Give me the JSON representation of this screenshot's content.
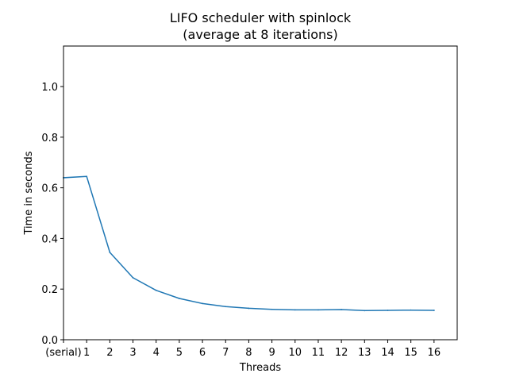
{
  "chart_data": {
    "type": "line",
    "title": "LIFO scheduler with spinlock",
    "subtitle": "(average at 8 iterations)",
    "xlabel": "Threads",
    "ylabel": "Time in seconds",
    "categories": [
      "(serial)",
      "1",
      "2",
      "3",
      "4",
      "5",
      "6",
      "7",
      "8",
      "9",
      "10",
      "11",
      "12",
      "13",
      "14",
      "15",
      "16"
    ],
    "x_tick_labels": [
      "(serial)",
      "1",
      "2",
      "3",
      "4",
      "5",
      "6",
      "7",
      "8",
      "9",
      "10",
      "11",
      "12",
      "13",
      "14",
      "15",
      "16"
    ],
    "y_tick_labels": [
      "0.0",
      "0.2",
      "0.4",
      "0.6",
      "0.8",
      "1.0"
    ],
    "y_ticks": [
      0.0,
      0.2,
      0.4,
      0.6,
      0.8,
      1.0
    ],
    "xlim": [
      0,
      17
    ],
    "ylim": [
      0,
      1.16
    ],
    "grid": false,
    "series": [
      {
        "values": [
          0.64,
          0.645,
          0.345,
          0.245,
          0.195,
          0.163,
          0.143,
          0.131,
          0.124,
          0.12,
          0.118,
          0.118,
          0.119,
          0.115,
          0.116,
          0.117,
          0.116
        ],
        "color": "#1f77b4"
      }
    ]
  }
}
